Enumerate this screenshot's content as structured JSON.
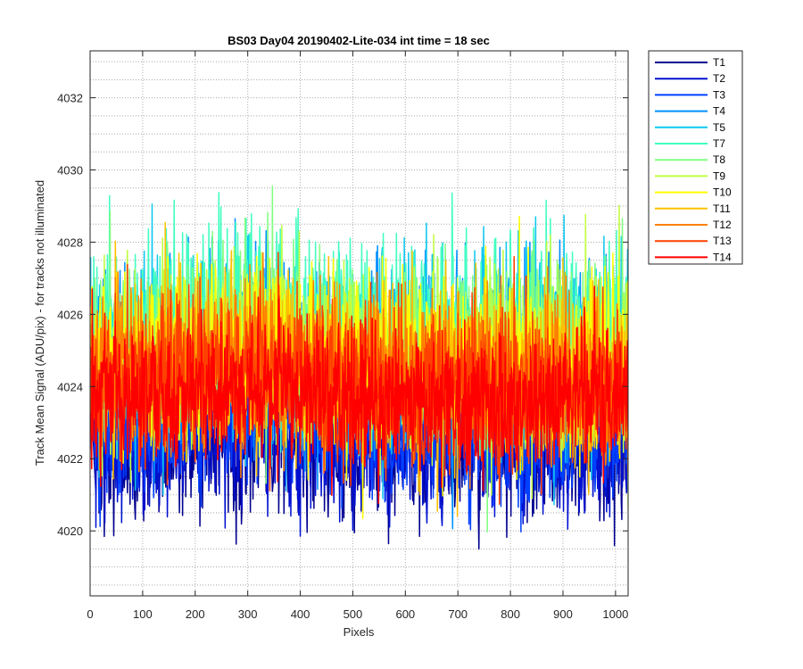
{
  "chart_data": {
    "type": "line",
    "title": "BS03 Day04 20190402-Lite-034 int time = 18 sec",
    "xlabel": "Pixels",
    "ylabel": "Track Mean Signal (ADU/pix) - for tracks not illuminated",
    "xlim": [
      0,
      1024
    ],
    "ylim": [
      4018.2,
      4033.3
    ],
    "x_ticks": [
      0,
      100,
      200,
      300,
      400,
      500,
      600,
      700,
      800,
      900,
      1000
    ],
    "y_ticks": [
      4020,
      4022,
      4024,
      4026,
      4028,
      4030,
      4032
    ],
    "y_minor_step": 0.5,
    "grid": true,
    "legend_position": "outside-top-right",
    "n_points": 1024,
    "series": [
      {
        "name": "T1",
        "color": "#00008f",
        "mean": 4022.3,
        "noise": 1.0,
        "z": 0
      },
      {
        "name": "T2",
        "color": "#0010d0",
        "mean": 4022.5,
        "noise": 1.0,
        "z": 1
      },
      {
        "name": "T3",
        "color": "#0040ff",
        "mean": 4022.8,
        "noise": 1.0,
        "z": 2
      },
      {
        "name": "T4",
        "color": "#0090ff",
        "mean": 4024.7,
        "noise": 1.3,
        "z": 3
      },
      {
        "name": "T5",
        "color": "#10c8f0",
        "mean": 4025.0,
        "noise": 1.3,
        "z": 4
      },
      {
        "name": "T7",
        "color": "#40ffc0",
        "mean": 4025.4,
        "noise": 1.3,
        "z": 5
      },
      {
        "name": "T8",
        "color": "#80ff80",
        "mean": 4025.0,
        "noise": 1.2,
        "z": 6
      },
      {
        "name": "T9",
        "color": "#c0ff40",
        "mean": 4024.8,
        "noise": 1.2,
        "z": 7
      },
      {
        "name": "T10",
        "color": "#ffff00",
        "mean": 4024.6,
        "noise": 1.2,
        "z": 8
      },
      {
        "name": "T11",
        "color": "#ffc000",
        "mean": 4024.3,
        "noise": 1.2,
        "z": 9
      },
      {
        "name": "T12",
        "color": "#ff8000",
        "mean": 4024.2,
        "noise": 1.1,
        "z": 10
      },
      {
        "name": "T13",
        "color": "#ff4000",
        "mean": 4024.0,
        "noise": 1.1,
        "z": 11
      },
      {
        "name": "T14",
        "color": "#ff0000",
        "mean": 4023.6,
        "noise": 1.0,
        "z": 12
      }
    ]
  }
}
